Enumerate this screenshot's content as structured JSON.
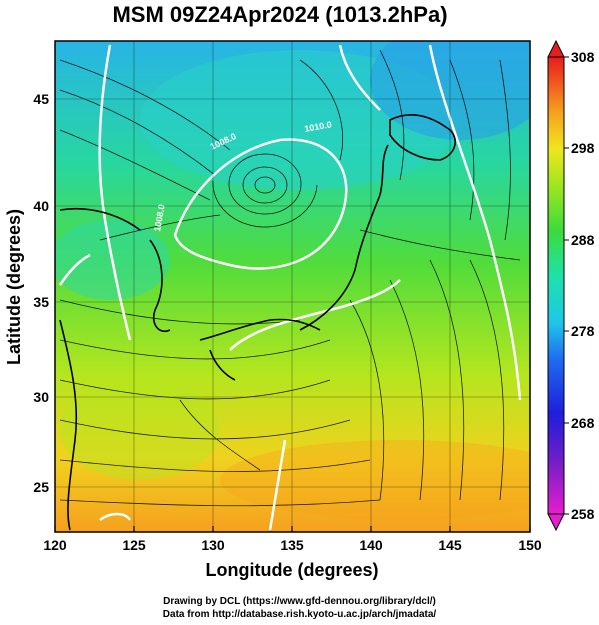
{
  "title": "MSM 09Z24Apr2024 (1013.2hPa)",
  "xlabel": "Longitude (degrees)",
  "ylabel": "Latitude  (degrees)",
  "credits": {
    "line1": "Drawing by DCL (https://www.gfd-dennou.org/library/dcl/)",
    "line2": "Data from http://database.rish.kyoto-u.ac.jp/arch/jmadata/"
  },
  "chart_data": {
    "type": "heatmap",
    "xlim": [
      120,
      150
    ],
    "ylim": [
      22.4,
      47.6
    ],
    "xticks": [
      "120",
      "125",
      "130",
      "135",
      "140",
      "145",
      "150"
    ],
    "yticks": [
      "25",
      "30",
      "35",
      "40",
      "45"
    ],
    "colorbar": {
      "min": 258,
      "max": 308,
      "ticks": [
        "258",
        "268",
        "278",
        "288",
        "298",
        "308"
      ]
    },
    "contours": [
      "1008.0",
      "1010.0",
      "1008.0"
    ],
    "grid": true
  },
  "colors": {
    "warm": "#f5a01e",
    "mid": "#7ee01e",
    "cool": "#1ec8c8",
    "contour": "#ffffff",
    "land_outline": "#000000"
  }
}
